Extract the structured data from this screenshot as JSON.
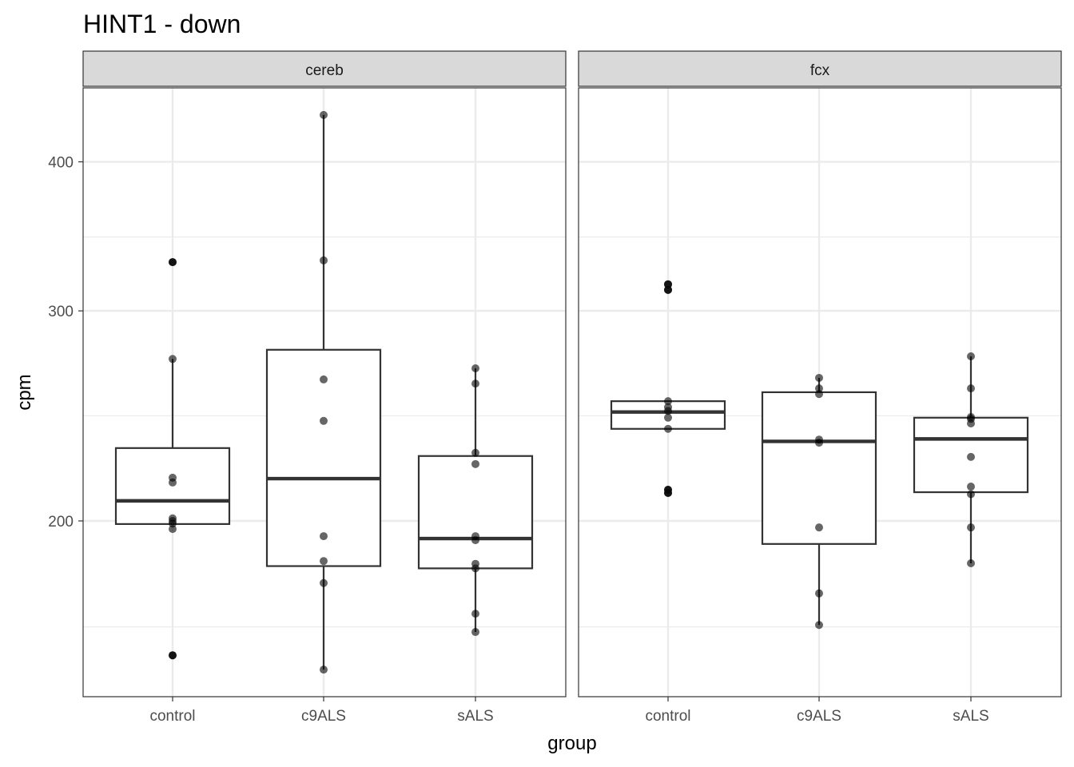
{
  "chart_data": {
    "type": "boxplot",
    "title": "HINT1 - down",
    "xlabel": "group",
    "ylabel": "cpm",
    "y_scale": "log10",
    "ylim": [
      145,
      460
    ],
    "y_ticks": [
      200,
      300,
      400
    ],
    "y_minor_gridlines": [
      163,
      245,
      346
    ],
    "grid": true,
    "categories": [
      "control",
      "c9ALS",
      "sALS"
    ],
    "colors": {
      "box": "#333333",
      "point": "#000000",
      "strip": "#d9d9d9",
      "grid": "#ebebeb"
    },
    "facets": [
      {
        "label": "cereb",
        "groups": [
          {
            "group": "control",
            "q1": 198.8,
            "median": 207.9,
            "q3": 230.2,
            "whisker_low": 198.8,
            "whisker_high": 273.4,
            "outliers": [
              329.6,
              154.3
            ],
            "points": [
              329.6,
              273.4,
              217.4,
              215.4,
              201,
              200,
              199,
              196.9,
              154.3
            ]
          },
          {
            "group": "c9ALS",
            "q1": 183.3,
            "median": 217.0,
            "q3": 278.3,
            "whisker_low": 150.1,
            "whisker_high": 437.9,
            "outliers": [],
            "points": [
              437.9,
              330.7,
              262.8,
              242.6,
              194.2,
              185.1,
              177.4,
              150.1
            ]
          },
          {
            "group": "sALS",
            "q1": 182.5,
            "median": 193.3,
            "q3": 226.7,
            "whisker_low": 161.4,
            "whisker_high": 268.5,
            "outliers": [],
            "points": [
              268.5,
              260.7,
              228.1,
              223.2,
              194.2,
              192.7,
              184.1,
              182.5,
              167.2,
              161.4
            ]
          }
        ]
      },
      {
        "label": "fcx",
        "groups": [
          {
            "group": "control",
            "q1": 238.9,
            "median": 246.8,
            "q3": 252.0,
            "whisker_low": 238.9,
            "whisker_high": 252.0,
            "outliers": [
              315.8,
              312.4,
              212.4,
              211.1
            ],
            "points": [
              315.8,
              312.4,
              252.0,
              249.1,
              247.3,
              244.1,
              238.9,
              212.4,
              211.1
            ]
          },
          {
            "group": "c9ALS",
            "q1": 191.3,
            "median": 233.2,
            "q3": 256.4,
            "whisker_low": 163.6,
            "whisker_high": 263.6,
            "outliers": [],
            "points": [
              263.6,
              258.3,
              255.5,
              234.0,
              232.6,
              197.5,
              173.9,
              163.6
            ]
          },
          {
            "group": "sALS",
            "q1": 211.4,
            "median": 234.3,
            "q3": 244.1,
            "whisker_low": 184.3,
            "whisker_high": 274.8,
            "outliers": [],
            "points": [
              274.8,
              258.3,
              244.4,
              243.5,
              241.4,
              226.3,
              213.7,
              210.6,
              197.5,
              184.3
            ]
          }
        ]
      }
    ]
  }
}
